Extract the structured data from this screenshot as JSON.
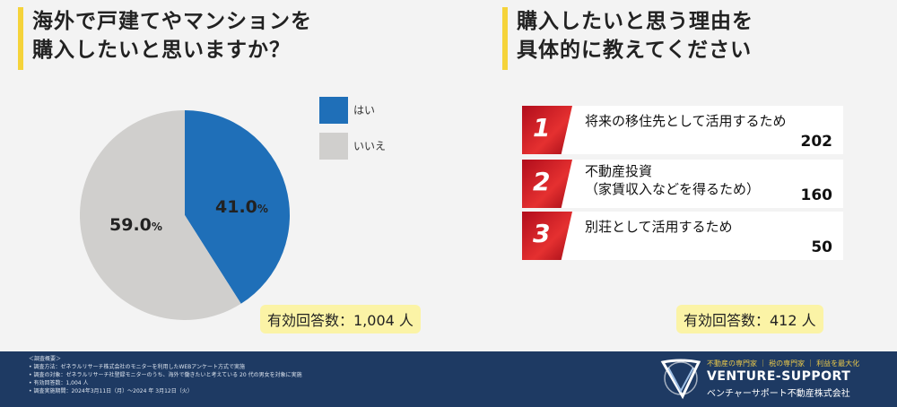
{
  "left_title": [
    "海外で戸建てやマンションを",
    "購入したいと思いますか？"
  ],
  "right_title": [
    "購入したいと思う理由を",
    "具体的に教えてください"
  ],
  "colors": {
    "yes": "#1f6fb8",
    "no": "#d0cfcd",
    "accent": "#f5d33a",
    "footer": "#1e3a63"
  },
  "chart_data": [
    {
      "type": "pie",
      "title": "海外で戸建てやマンションを購入したいと思いますか？",
      "categories": [
        "はい",
        "いいえ"
      ],
      "values": [
        41.0,
        59.0
      ],
      "labels": [
        "41.0",
        "59.0"
      ],
      "unit": "%",
      "legend": "right",
      "respondents": "有効回答数：1,004 人"
    },
    {
      "type": "table",
      "title": "購入したいと思う理由を具体的に教えてください",
      "rows": [
        {
          "rank": "1",
          "reason": [
            "将来の移住先として活用するため"
          ],
          "value": "202"
        },
        {
          "rank": "2",
          "reason": [
            "不動産投資",
            "（家賃収入などを得るため）"
          ],
          "value": "160"
        },
        {
          "rank": "3",
          "reason": [
            "別荘として活用するため"
          ],
          "value": "50"
        }
      ],
      "respondents": "有効回答数：412 人"
    }
  ],
  "footer": {
    "notes": [
      "＜調査概要＞",
      "• 調査方法：ゼネラルリサーチ株式会社のモニターを利用したWEBアンケート方式で実施",
      "• 調査の対象：ゼネラルリサーチ社登録モニターのうち、海外で働きたいと考えている 20 代の男女を対象に実施",
      "• 有効回答数：1,004 人",
      "• 調査実施期間：2024年3月11日（月）～2024 年 3月12日（火）"
    ],
    "tagline": "不動産の専門家 ｜ 税の専門家 ｜ 利益を最大化",
    "brand": "VENTURE-SUPPORT",
    "company": "ベンチャーサポート不動産株式会社"
  }
}
